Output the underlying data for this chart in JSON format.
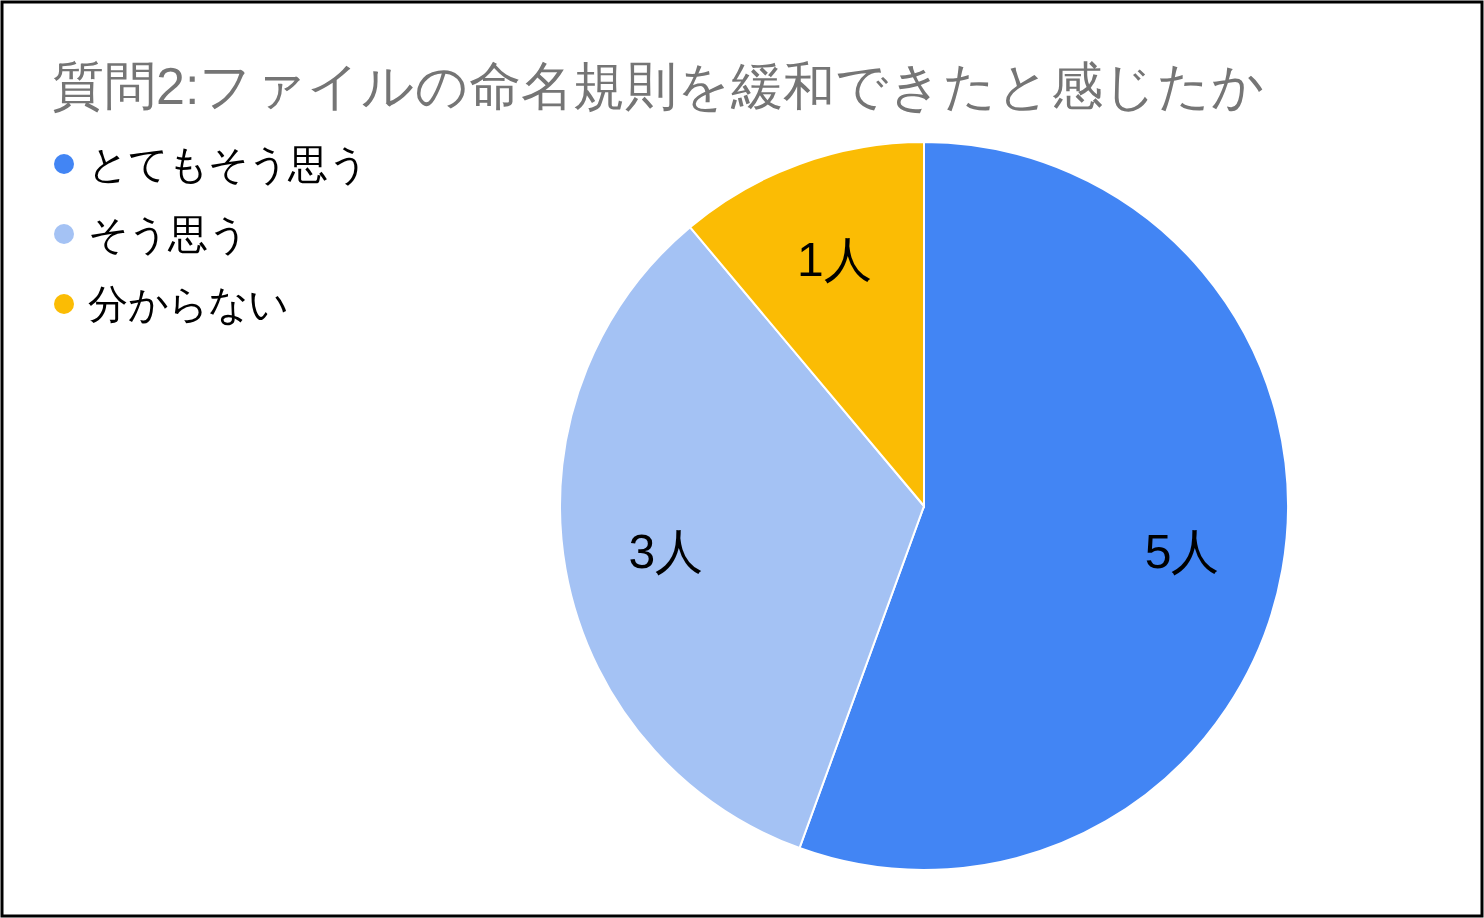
{
  "chart_data": {
    "type": "pie",
    "title": "質問2:ファイルの命名規則を緩和できたと感じたか",
    "categories": [
      "とてもそう思う",
      "そう思う",
      "分からない"
    ],
    "values": [
      5,
      3,
      1
    ],
    "colors": [
      "#4285f4",
      "#a4c2f4",
      "#fbbc04"
    ],
    "value_labels": [
      "5人",
      "3人",
      "1人"
    ],
    "legend": "top left"
  }
}
